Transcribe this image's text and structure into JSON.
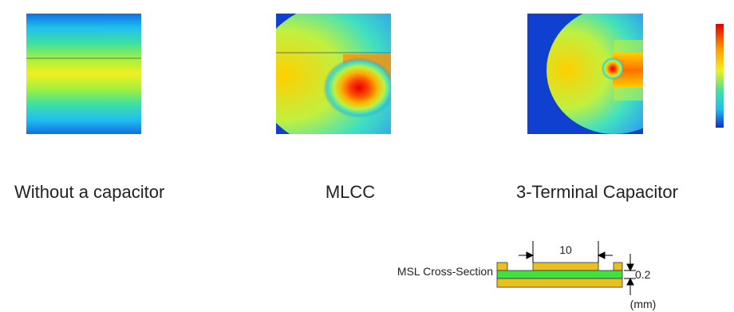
{
  "panels": [
    {
      "label": "Without a capacitor"
    },
    {
      "label": "MLCC"
    },
    {
      "label": "3-Terminal Capacitor"
    }
  ],
  "cross_section": {
    "title": "MSL Cross-Section",
    "width_label": "10",
    "thickness_label": "0.2",
    "unit": "(mm)"
  }
}
